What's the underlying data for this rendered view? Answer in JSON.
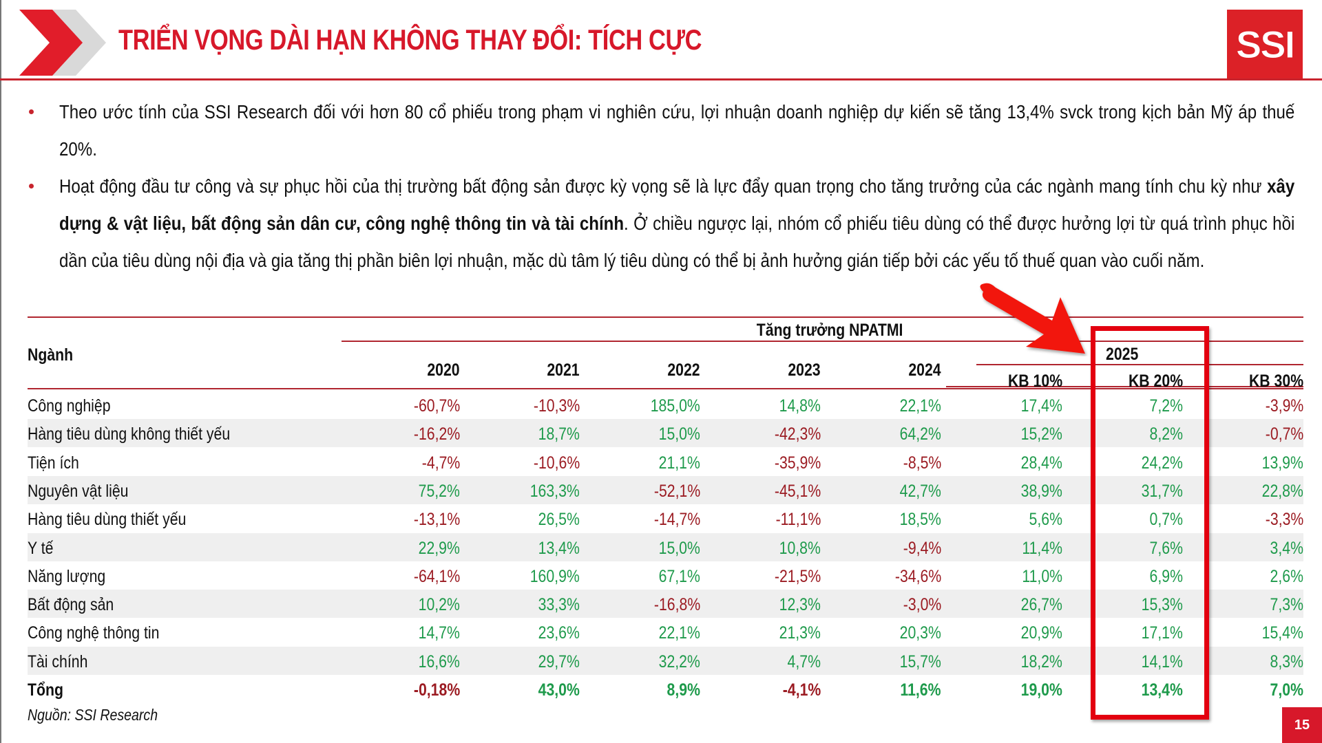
{
  "header": {
    "title": "TRIỂN VỌNG DÀI HẠN KHÔNG THAY ĐỔI: TÍCH CỰC",
    "logo_text": "SSI",
    "brand_color": "#d7182a"
  },
  "bullets": [
    {
      "parts": [
        {
          "text": "Theo ước tính của SSI Research đối với hơn 80 cổ phiếu trong phạm vi nghiên cứu, lợi nhuận doanh nghiệp dự kiến sẽ tăng 13,4% svck trong kịch bản Mỹ áp thuế 20%.",
          "bold": false
        }
      ]
    },
    {
      "parts": [
        {
          "text": "Hoạt động đầu tư công và sự phục hồi của thị trường bất động sản được kỳ vọng sẽ là lực đẩy quan trọng cho tăng trưởng của các ngành mang tính chu kỳ như ",
          "bold": false
        },
        {
          "text": "xây dựng & vật liệu, bất động sản dân cư, công nghệ thông tin và tài chính",
          "bold": true
        },
        {
          "text": ". Ở chiều ngược lại, nhóm cổ phiếu tiêu dùng có thể được hưởng lợi từ quá trình phục hồi dần của tiêu dùng nội địa và gia tăng thị phần biên lợi nhuận, mặc dù tâm lý tiêu dùng có thể bị ảnh hưởng gián tiếp bởi các yếu tố thuế quan vào cuối năm.",
          "bold": false
        }
      ]
    }
  ],
  "table": {
    "group_header": "Tăng trưởng NPATMI",
    "sector_header": "Ngành",
    "year_2025_header": "2025",
    "columns": [
      "2020",
      "2021",
      "2022",
      "2023",
      "2024",
      "KB 10%",
      "KB 20%",
      "KB 30%"
    ],
    "rows": [
      {
        "name": "Công nghiệp",
        "values": [
          "-60,7%",
          "-10,3%",
          "185,0%",
          "14,8%",
          "22,1%",
          "17,4%",
          "7,2%",
          "-3,9%"
        ]
      },
      {
        "name": "Hàng tiêu dùng không thiết yếu",
        "values": [
          "-16,2%",
          "18,7%",
          "15,0%",
          "-42,3%",
          "64,2%",
          "15,2%",
          "8,2%",
          "-0,7%"
        ]
      },
      {
        "name": "Tiện ích",
        "values": [
          "-4,7%",
          "-10,6%",
          "21,1%",
          "-35,9%",
          "-8,5%",
          "28,4%",
          "24,2%",
          "13,9%"
        ]
      },
      {
        "name": "Nguyên vật liệu",
        "values": [
          "75,2%",
          "163,3%",
          "-52,1%",
          "-45,1%",
          "42,7%",
          "38,9%",
          "31,7%",
          "22,8%"
        ]
      },
      {
        "name": "Hàng tiêu dùng thiết yếu",
        "values": [
          "-13,1%",
          "26,5%",
          "-14,7%",
          "-11,1%",
          "18,5%",
          "5,6%",
          "0,7%",
          "-3,3%"
        ]
      },
      {
        "name": "Y tế",
        "values": [
          "22,9%",
          "13,4%",
          "15,0%",
          "10,8%",
          "-9,4%",
          "11,4%",
          "7,6%",
          "3,4%"
        ]
      },
      {
        "name": "Năng lượng",
        "values": [
          "-64,1%",
          "160,9%",
          "67,1%",
          "-21,5%",
          "-34,6%",
          "11,0%",
          "6,9%",
          "2,6%"
        ]
      },
      {
        "name": "Bất động sản",
        "values": [
          "10,2%",
          "33,3%",
          "-16,8%",
          "12,3%",
          "-3,0%",
          "26,7%",
          "15,3%",
          "7,3%"
        ]
      },
      {
        "name": "Công nghệ thông tin",
        "values": [
          "14,7%",
          "23,6%",
          "22,1%",
          "21,3%",
          "20,3%",
          "20,9%",
          "17,1%",
          "15,4%"
        ]
      },
      {
        "name": "Tài chính",
        "values": [
          "16,6%",
          "29,7%",
          "32,2%",
          "4,7%",
          "15,7%",
          "18,2%",
          "14,1%",
          "8,3%"
        ]
      },
      {
        "name": "Tổng",
        "values": [
          "-0,18%",
          "43,0%",
          "8,9%",
          "-4,1%",
          "11,6%",
          "19,0%",
          "13,4%",
          "7,0%"
        ],
        "total": true
      }
    ],
    "colors": {
      "positive": "#1e9a4b",
      "negative": "#9b1b22",
      "highlight": "#e3000f"
    }
  },
  "source": "Nguồn: SSI Research",
  "page_number": "15",
  "chart_data": {
    "type": "table",
    "title": "Tăng trưởng NPATMI",
    "categories": [
      "Công nghiệp",
      "Hàng tiêu dùng không thiết yếu",
      "Tiện ích",
      "Nguyên vật liệu",
      "Hàng tiêu dùng thiết yếu",
      "Y tế",
      "Năng lượng",
      "Bất động sản",
      "Công nghệ thông tin",
      "Tài chính",
      "Tổng"
    ],
    "series": [
      {
        "name": "2020",
        "values": [
          -60.7,
          -16.2,
          -4.7,
          75.2,
          -13.1,
          22.9,
          -64.1,
          10.2,
          14.7,
          16.6,
          -0.18
        ]
      },
      {
        "name": "2021",
        "values": [
          -10.3,
          18.7,
          -10.6,
          163.3,
          26.5,
          13.4,
          160.9,
          33.3,
          23.6,
          29.7,
          43.0
        ]
      },
      {
        "name": "2022",
        "values": [
          185.0,
          15.0,
          21.1,
          -52.1,
          -14.7,
          15.0,
          67.1,
          -16.8,
          22.1,
          32.2,
          8.9
        ]
      },
      {
        "name": "2023",
        "values": [
          14.8,
          -42.3,
          -35.9,
          -45.1,
          -11.1,
          10.8,
          -21.5,
          12.3,
          21.3,
          4.7,
          -4.1
        ]
      },
      {
        "name": "2024",
        "values": [
          22.1,
          64.2,
          -8.5,
          42.7,
          18.5,
          -9.4,
          -34.6,
          -3.0,
          20.3,
          15.7,
          11.6
        ]
      },
      {
        "name": "2025 KB 10%",
        "values": [
          17.4,
          15.2,
          28.4,
          38.9,
          5.6,
          11.4,
          11.0,
          26.7,
          20.9,
          18.2,
          19.0
        ]
      },
      {
        "name": "2025 KB 20%",
        "values": [
          7.2,
          8.2,
          24.2,
          31.7,
          0.7,
          7.6,
          6.9,
          15.3,
          17.1,
          14.1,
          13.4
        ]
      },
      {
        "name": "2025 KB 30%",
        "values": [
          -3.9,
          -0.7,
          13.9,
          22.8,
          -3.3,
          3.4,
          2.6,
          7.3,
          15.4,
          8.3,
          7.0
        ]
      }
    ],
    "annotations": [
      "Highlighted column: 2025 KB 20%",
      "Nguồn: SSI Research"
    ]
  }
}
